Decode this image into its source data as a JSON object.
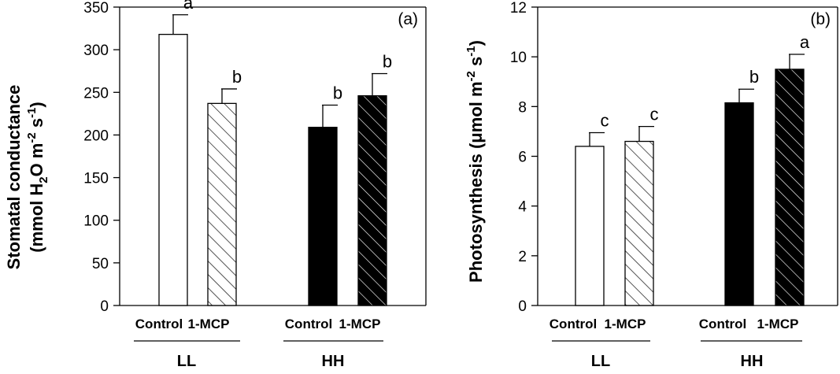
{
  "chart_data": [
    {
      "type": "bar",
      "panel_label": "(a)",
      "ylabel_line1": "Stomatal conductance",
      "ylabel_line2": {
        "prefix": "(mmol H",
        "sub": "2",
        "mid": "O m",
        "sup1": "-2",
        "mid2": " s",
        "sup2": "-1",
        "suffix": ")"
      },
      "ylim": [
        0,
        350
      ],
      "yticks": [
        0,
        50,
        100,
        150,
        200,
        250,
        300,
        350
      ],
      "groups": [
        "LL",
        "HH"
      ],
      "categories": [
        "Control",
        "1-MCP",
        "Control",
        "1-MCP"
      ],
      "bars": [
        {
          "group": "LL",
          "treatment": "Control",
          "value": 318,
          "error": 23,
          "letter": "a",
          "style": "open"
        },
        {
          "group": "LL",
          "treatment": "1-MCP",
          "value": 237,
          "error": 17,
          "letter": "b",
          "style": "hatched-open"
        },
        {
          "group": "HH",
          "treatment": "Control",
          "value": 209,
          "error": 26,
          "letter": "b",
          "style": "filled"
        },
        {
          "group": "HH",
          "treatment": "1-MCP",
          "value": 246,
          "error": 26,
          "letter": "b",
          "style": "hatched-filled"
        }
      ]
    },
    {
      "type": "bar",
      "panel_label": "(b)",
      "ylabel": {
        "prefix": "Photosynthesis (μmol m",
        "sup1": "-2",
        "mid": " s",
        "sup2": "-1",
        "suffix": ")"
      },
      "ylim": [
        0,
        12
      ],
      "yticks": [
        0,
        2,
        4,
        6,
        8,
        10,
        12
      ],
      "groups": [
        "LL",
        "HH"
      ],
      "categories": [
        "Control",
        "1-MCP",
        "Control",
        "1-MCP"
      ],
      "bars": [
        {
          "group": "LL",
          "treatment": "Control",
          "value": 6.4,
          "error": 0.55,
          "letter": "c",
          "style": "open"
        },
        {
          "group": "LL",
          "treatment": "1-MCP",
          "value": 6.6,
          "error": 0.6,
          "letter": "c",
          "style": "hatched-open"
        },
        {
          "group": "HH",
          "treatment": "Control",
          "value": 8.15,
          "error": 0.55,
          "letter": "b",
          "style": "filled"
        },
        {
          "group": "HH",
          "treatment": "1-MCP",
          "value": 9.5,
          "error": 0.6,
          "letter": "a",
          "style": "hatched-filled"
        }
      ]
    }
  ]
}
